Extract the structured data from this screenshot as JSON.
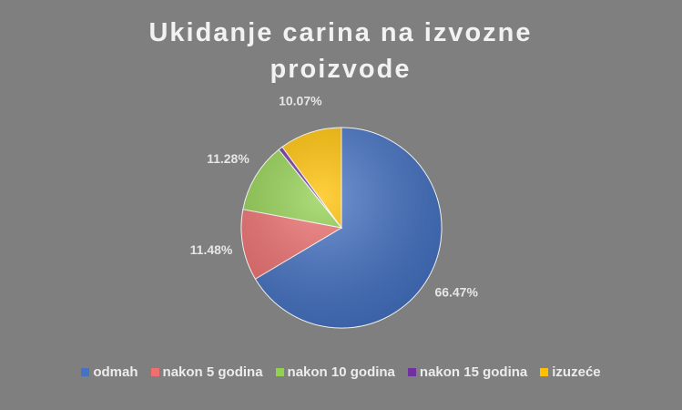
{
  "chart_data": {
    "type": "pie",
    "title": "Ukidanje carina na izvozne proizvode",
    "categories": [
      "odmah",
      "nakon 5 godina",
      "nakon 10 godina",
      "nakon 15 godina",
      "izuzeće"
    ],
    "values": [
      66.47,
      11.48,
      11.28,
      0.7,
      10.07
    ],
    "value_labels": [
      "66.47%",
      "11.48%",
      "11.28%",
      null,
      "10.07%"
    ],
    "colors": [
      "#4472c4",
      "#ee6f6f",
      "#92d050",
      "#7030a0",
      "#ffc000"
    ],
    "legend": "bottom"
  }
}
